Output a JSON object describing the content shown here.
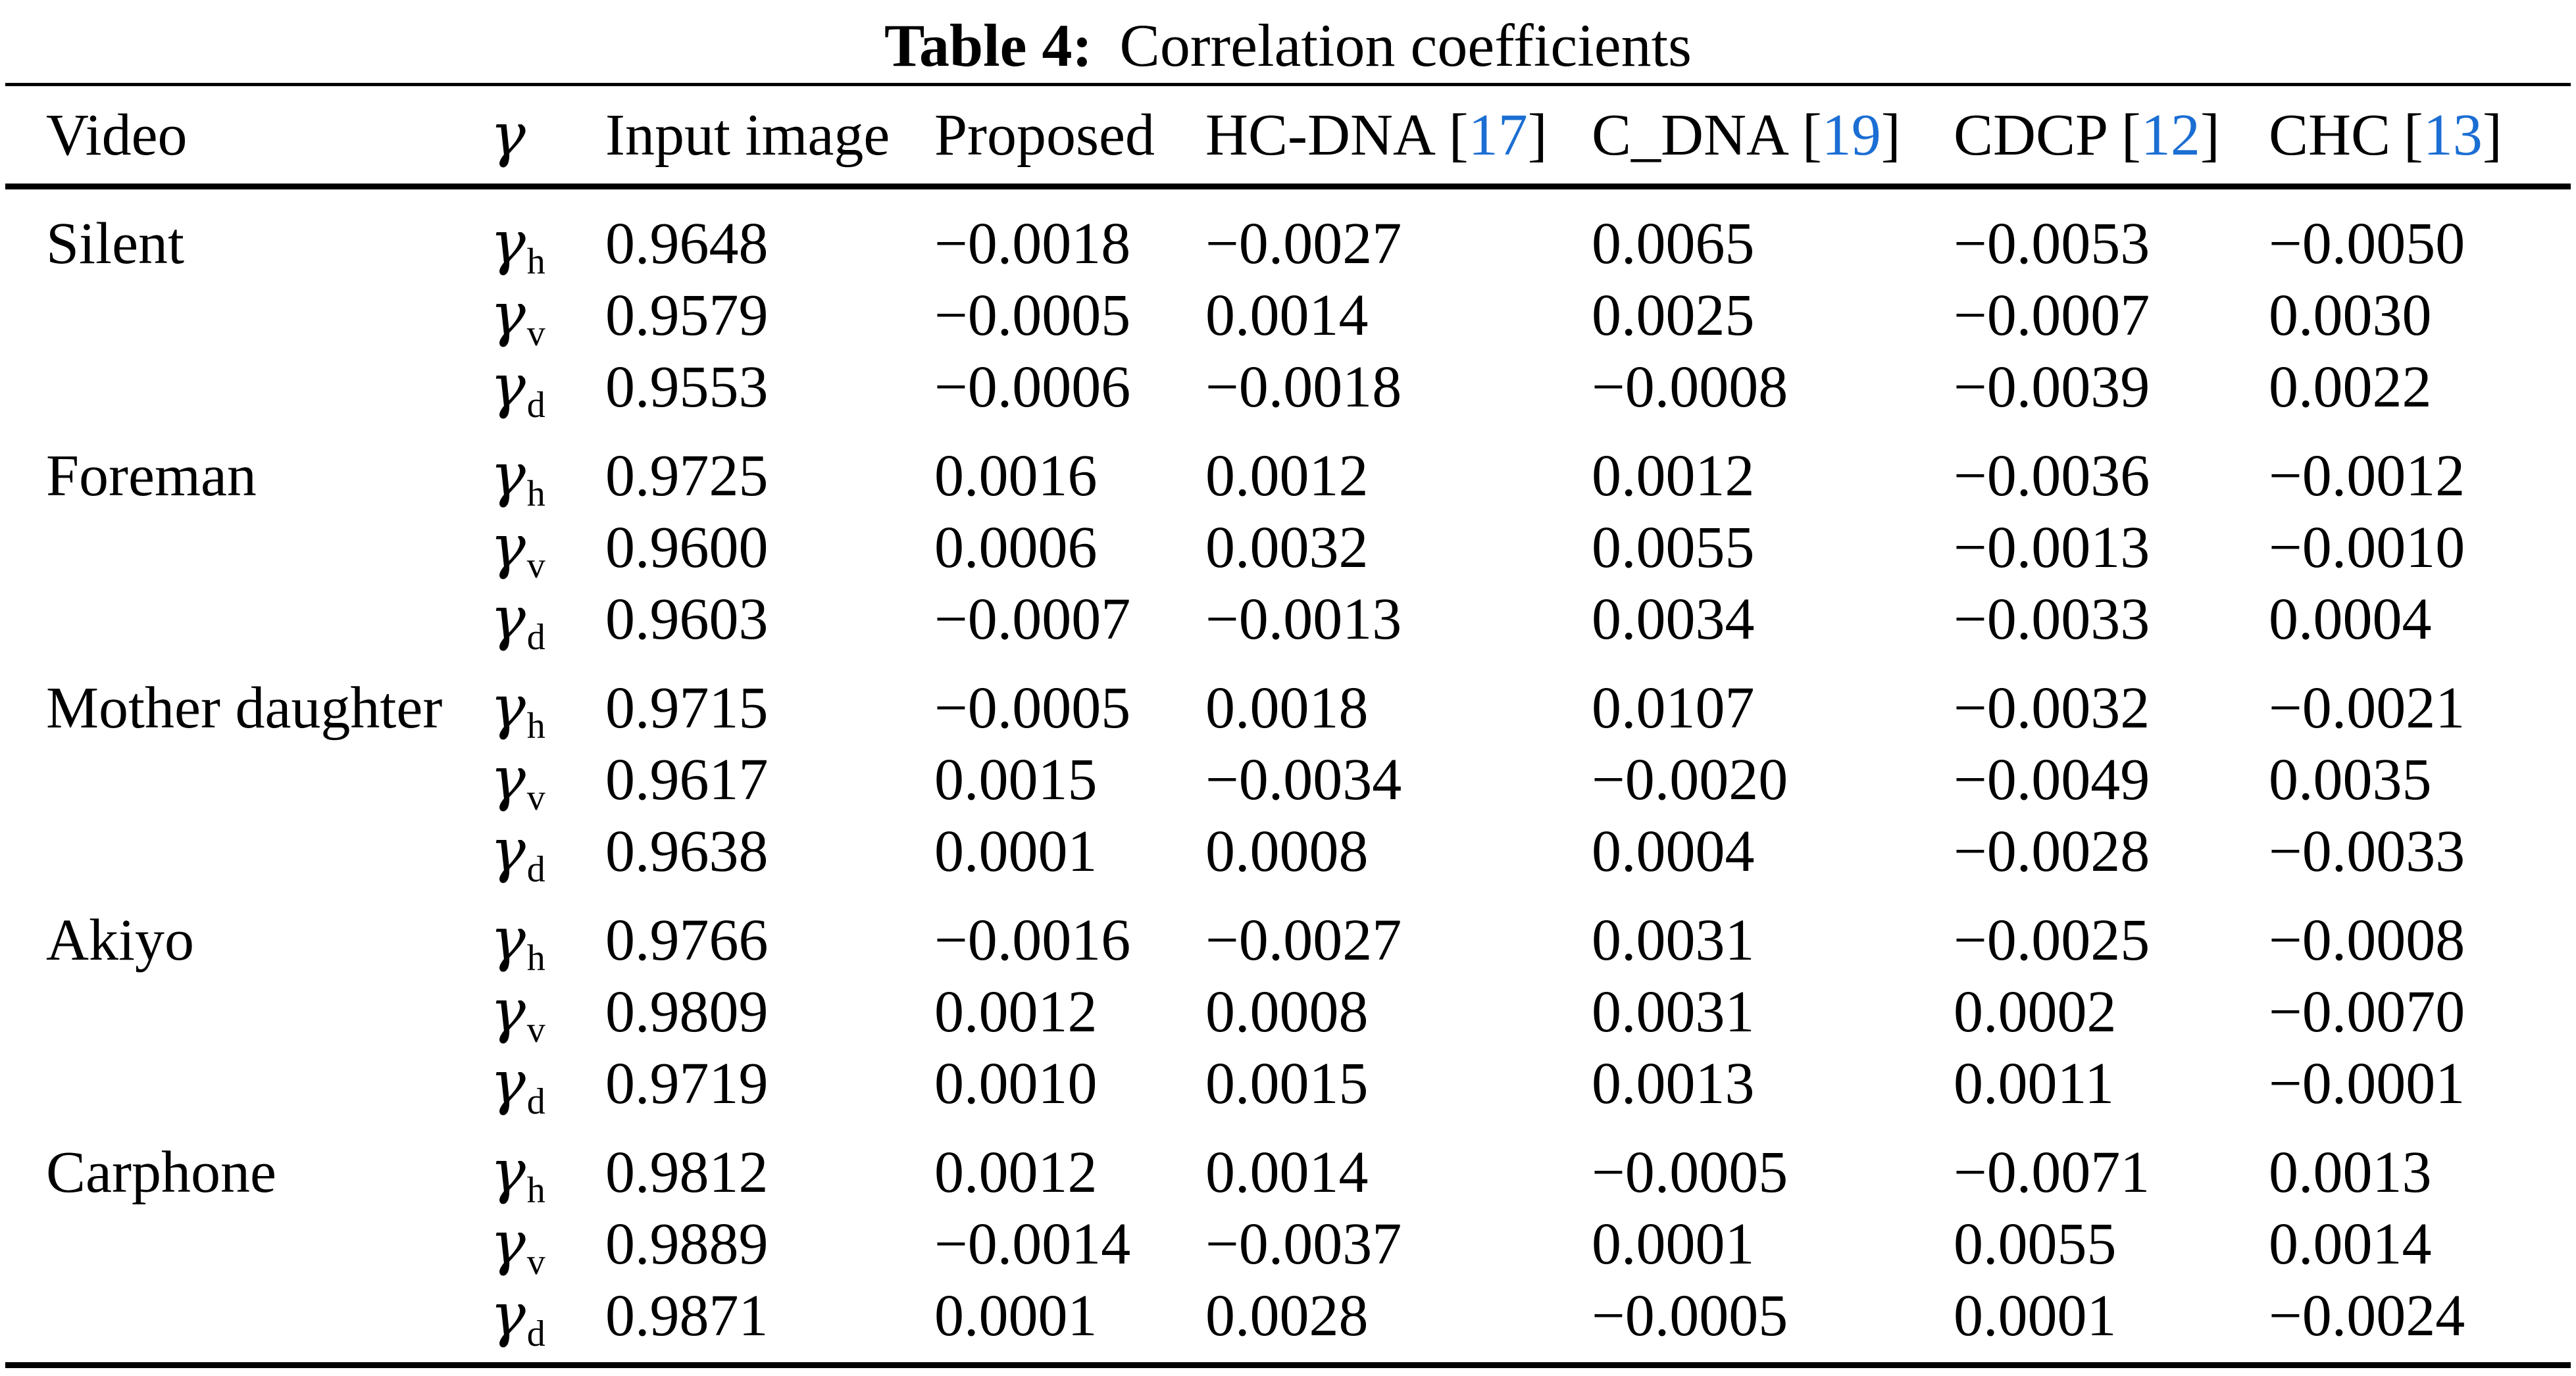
{
  "caption": {
    "label": "Table 4:",
    "text": "Correlation coefficients"
  },
  "colors": {
    "citation_blue": "#1b6ed3",
    "text": "#000000",
    "background": "#ffffff",
    "rule": "#000000"
  },
  "header": {
    "citation_brackets": {
      "open": "[",
      "close": "]"
    },
    "columns": [
      {
        "label": "Video"
      },
      {
        "label": "γ",
        "italic": true
      },
      {
        "label": "Input image"
      },
      {
        "label": "Proposed"
      },
      {
        "label": "HC-DNA",
        "cite": "17"
      },
      {
        "label": "C_DNA",
        "cite": "19"
      },
      {
        "label": "CDCP",
        "cite": "12"
      },
      {
        "label": "CHC",
        "cite": "13"
      }
    ]
  },
  "body": {
    "groups": [
      {
        "video": "Silent",
        "rows": [
          {
            "gamma": "γ",
            "sub": "h",
            "values": [
              "0.9648",
              "−0.0018",
              "−0.0027",
              "0.0065",
              "−0.0053",
              "−0.0050"
            ]
          },
          {
            "gamma": "γ",
            "sub": "v",
            "values": [
              "0.9579",
              "−0.0005",
              "0.0014",
              "0.0025",
              "−0.0007",
              "0.0030"
            ]
          },
          {
            "gamma": "γ",
            "sub": "d",
            "values": [
              "0.9553",
              "−0.0006",
              "−0.0018",
              "−0.0008",
              "−0.0039",
              "0.0022"
            ]
          }
        ]
      },
      {
        "video": "Foreman",
        "rows": [
          {
            "gamma": "γ",
            "sub": "h",
            "values": [
              "0.9725",
              "0.0016",
              "0.0012",
              "0.0012",
              "−0.0036",
              "−0.0012"
            ]
          },
          {
            "gamma": "γ",
            "sub": "v",
            "values": [
              "0.9600",
              "0.0006",
              "0.0032",
              "0.0055",
              "−0.0013",
              "−0.0010"
            ]
          },
          {
            "gamma": "γ",
            "sub": "d",
            "values": [
              "0.9603",
              "−0.0007",
              "−0.0013",
              "0.0034",
              "−0.0033",
              "0.0004"
            ]
          }
        ]
      },
      {
        "video": "Mother daughter",
        "rows": [
          {
            "gamma": "γ",
            "sub": "h",
            "values": [
              "0.9715",
              "−0.0005",
              "0.0018",
              "0.0107",
              "−0.0032",
              "−0.0021"
            ]
          },
          {
            "gamma": "γ",
            "sub": "v",
            "values": [
              "0.9617",
              "0.0015",
              "−0.0034",
              "−0.0020",
              "−0.0049",
              "0.0035"
            ]
          },
          {
            "gamma": "γ",
            "sub": "d",
            "values": [
              "0.9638",
              "0.0001",
              "0.0008",
              "0.0004",
              "−0.0028",
              "−0.0033"
            ]
          }
        ]
      },
      {
        "video": "Akiyo",
        "rows": [
          {
            "gamma": "γ",
            "sub": "h",
            "values": [
              "0.9766",
              "−0.0016",
              "−0.0027",
              "0.0031",
              "−0.0025",
              "−0.0008"
            ]
          },
          {
            "gamma": "γ",
            "sub": "v",
            "values": [
              "0.9809",
              "0.0012",
              "0.0008",
              "0.0031",
              "0.0002",
              "−0.0070"
            ]
          },
          {
            "gamma": "γ",
            "sub": "d",
            "values": [
              "0.9719",
              "0.0010",
              "0.0015",
              "0.0013",
              "0.0011",
              "−0.0001"
            ]
          }
        ]
      },
      {
        "video": "Carphone",
        "rows": [
          {
            "gamma": "γ",
            "sub": "h",
            "values": [
              "0.9812",
              "0.0012",
              "0.0014",
              "−0.0005",
              "−0.0071",
              "0.0013"
            ]
          },
          {
            "gamma": "γ",
            "sub": "v",
            "values": [
              "0.9889",
              "−0.0014",
              "−0.0037",
              "0.0001",
              "0.0055",
              "0.0014"
            ]
          },
          {
            "gamma": "γ",
            "sub": "d",
            "values": [
              "0.9871",
              "0.0001",
              "0.0028",
              "−0.0005",
              "0.0001",
              "−0.0024"
            ]
          }
        ]
      }
    ]
  }
}
